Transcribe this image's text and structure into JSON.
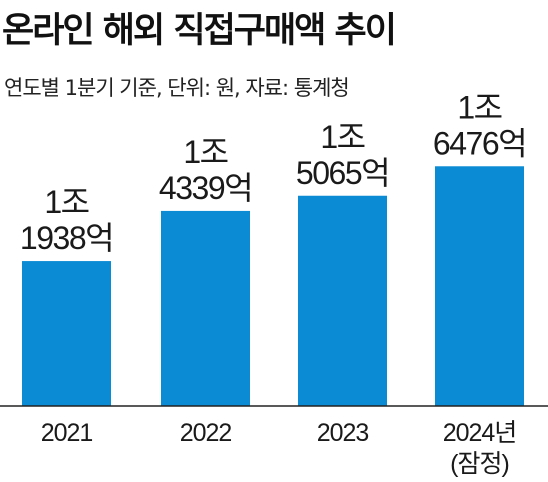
{
  "header": {
    "title": "온라인 해외 직접구매액 추이",
    "subtitle": "연도별 1분기 기준, 단위:  원, 자료: 통계청"
  },
  "colors": {
    "bar": "#0a8bd3",
    "axis": "#222222"
  },
  "chart_data": {
    "type": "bar",
    "title": "온라인 해외 직접구매액 추이",
    "subtitle": "연도별 1분기 기준, 단위:  원, 자료: 통계청",
    "categories": [
      "2021",
      "2022",
      "2023",
      "2024년"
    ],
    "category_notes": [
      "",
      "",
      "",
      "(잠정)"
    ],
    "values": [
      11938,
      14339,
      15065,
      16476
    ],
    "data_labels": [
      [
        "1조",
        "1938억"
      ],
      [
        "1조",
        "4339억"
      ],
      [
        "1조",
        "5065억"
      ],
      [
        "1조",
        "6476억"
      ]
    ],
    "unit": "억원",
    "ylim": [
      5000,
      18500
    ],
    "grid": false,
    "legend": "none"
  }
}
